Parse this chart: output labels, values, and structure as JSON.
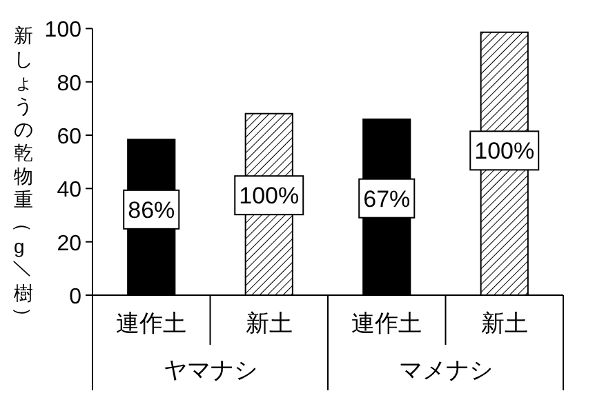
{
  "chart_data": {
    "type": "bar",
    "ylabel": "新しょうの乾物重（g／樹）",
    "categories": [
      "連作土",
      "新土",
      "連作土",
      "新土"
    ],
    "values": [
      58.4,
      68.1,
      66.0,
      98.6
    ],
    "colors": [
      "#000000",
      "#ffffff",
      "#000000",
      "#ffffff"
    ],
    "annotations": [
      "86%",
      "100%",
      "67%",
      "100%",
      "ヤマナシ",
      "マメナシ"
    ],
    "ylim": [
      0,
      100
    ],
    "yticks": [
      0,
      20,
      40,
      60,
      80,
      100
    ],
    "grid": false
  }
}
